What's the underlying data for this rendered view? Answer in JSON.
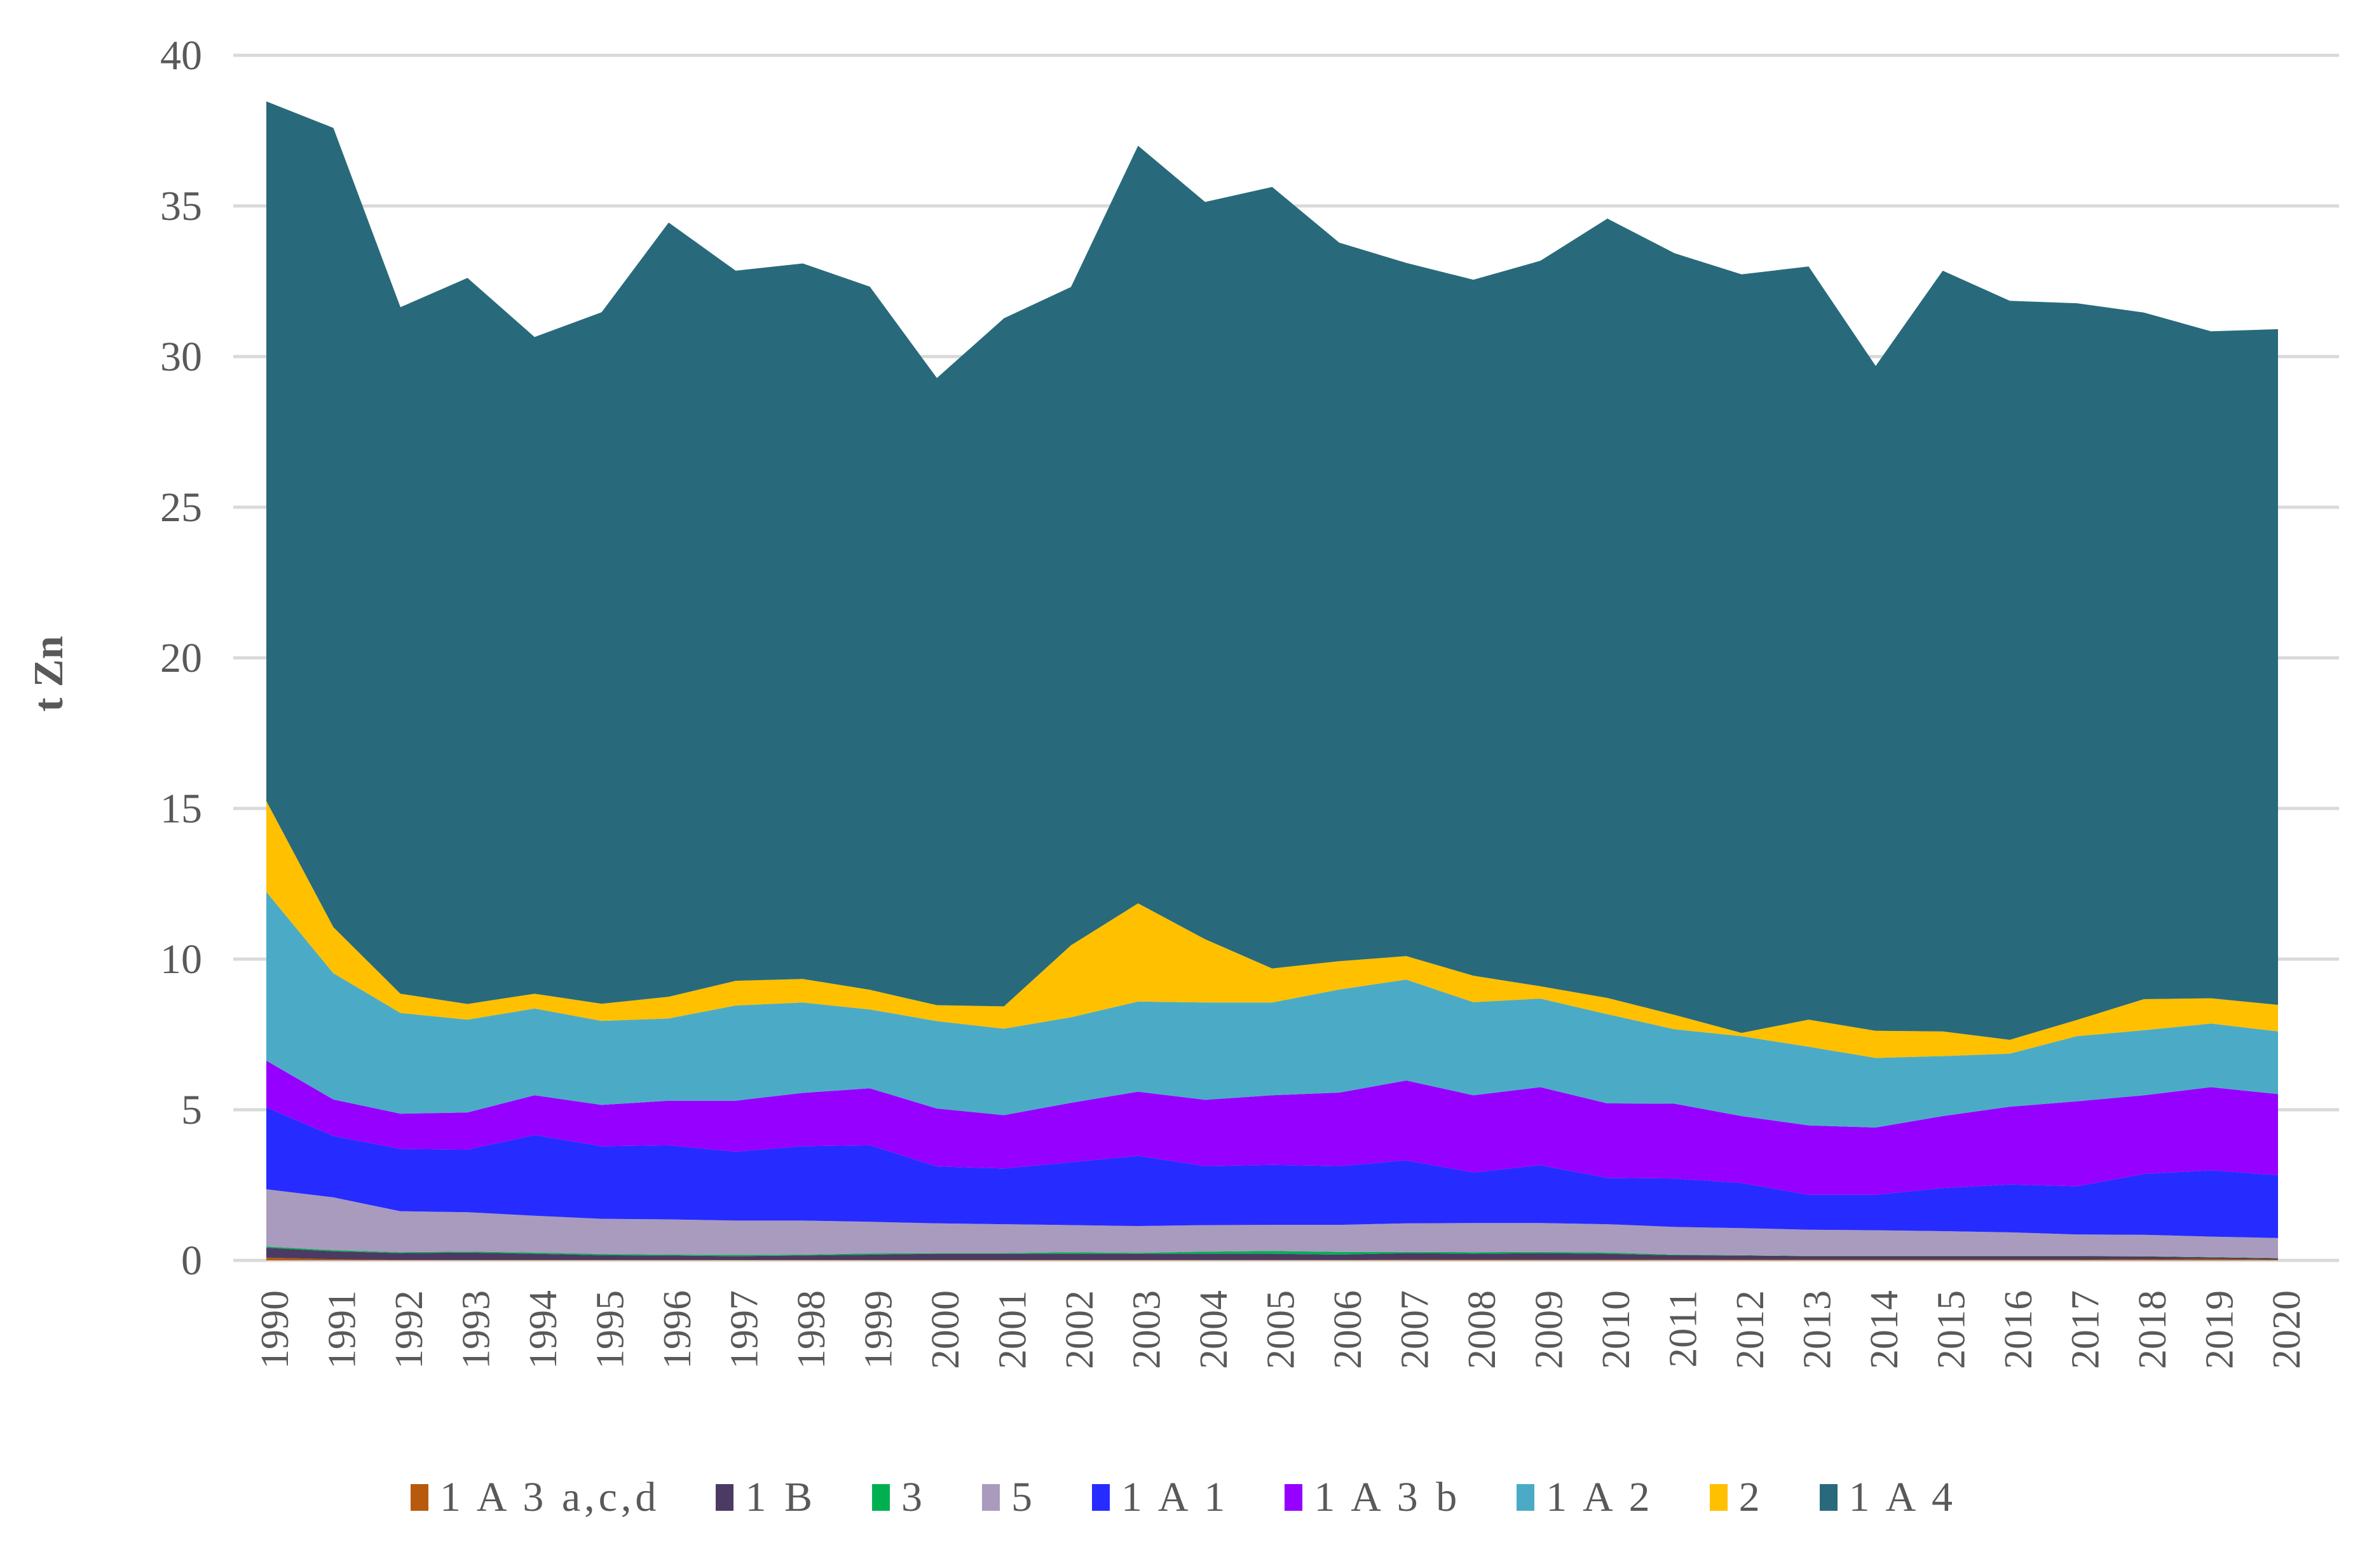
{
  "chart_data": {
    "type": "area",
    "stacked": true,
    "title": "",
    "xlabel": "",
    "ylabel": "t Zn",
    "ylim": [
      0,
      40
    ],
    "yticks": [
      0,
      5,
      10,
      15,
      20,
      25,
      30,
      35,
      40
    ],
    "grid": true,
    "legend_position": "bottom",
    "x": [
      "1990",
      "1991",
      "1992",
      "1993",
      "1994",
      "1995",
      "1996",
      "1997",
      "1998",
      "1999",
      "2000",
      "2001",
      "2002",
      "2003",
      "2004",
      "2005",
      "2006",
      "2007",
      "2008",
      "2009",
      "2010",
      "2011",
      "2012",
      "2013",
      "2014",
      "2015",
      "2016",
      "2017",
      "2018",
      "2019",
      "2020"
    ],
    "series": [
      {
        "name": "1 A 3 a,c,d",
        "color": "#b85a0d",
        "values": [
          0.09,
          0.04,
          0.02,
          0.02,
          0.02,
          0.02,
          0.02,
          0.02,
          0.02,
          0.02,
          0.02,
          0.02,
          0.02,
          0.02,
          0.02,
          0.02,
          0.02,
          0.03,
          0.03,
          0.03,
          0.03,
          0.03,
          0.03,
          0.03,
          0.03,
          0.03,
          0.03,
          0.03,
          0.04,
          0.05,
          0.03
        ]
      },
      {
        "name": "1 B",
        "color": "#4b3a63",
        "values": [
          0.33,
          0.26,
          0.22,
          0.24,
          0.2,
          0.15,
          0.14,
          0.12,
          0.14,
          0.17,
          0.2,
          0.2,
          0.2,
          0.2,
          0.2,
          0.2,
          0.17,
          0.21,
          0.19,
          0.21,
          0.19,
          0.14,
          0.13,
          0.11,
          0.11,
          0.11,
          0.11,
          0.11,
          0.09,
          0.05,
          0.04
        ]
      },
      {
        "name": "3",
        "color": "#00b050",
        "values": [
          0.04,
          0.04,
          0.03,
          0.03,
          0.04,
          0.04,
          0.03,
          0.04,
          0.03,
          0.04,
          0.02,
          0.02,
          0.05,
          0.03,
          0.07,
          0.09,
          0.09,
          0.04,
          0.05,
          0.04,
          0.04,
          0.02,
          0.01,
          0.01,
          0.01,
          0.01,
          0.01,
          0.01,
          0.01,
          0.01,
          0.01
        ]
      },
      {
        "name": "5",
        "color": "#a99bbd",
        "values": [
          1.9,
          1.75,
          1.36,
          1.31,
          1.22,
          1.17,
          1.17,
          1.14,
          1.13,
          1.05,
          0.99,
          0.96,
          0.9,
          0.89,
          0.88,
          0.87,
          0.9,
          0.95,
          0.97,
          0.96,
          0.94,
          0.92,
          0.9,
          0.87,
          0.85,
          0.82,
          0.78,
          0.71,
          0.71,
          0.68,
          0.66
        ]
      },
      {
        "name": "1 A 1",
        "color": "#262cff",
        "values": [
          2.72,
          2.04,
          2.07,
          2.08,
          2.68,
          2.41,
          2.46,
          2.29,
          2.47,
          2.54,
          1.89,
          1.85,
          2.09,
          2.33,
          1.96,
          1.99,
          1.95,
          2.09,
          1.68,
          1.92,
          1.54,
          1.61,
          1.5,
          1.16,
          1.18,
          1.43,
          1.59,
          1.6,
          2.02,
          2.2,
          2.09
        ]
      },
      {
        "name": "1 A 3 b",
        "color": "#9600ff",
        "values": [
          1.55,
          1.21,
          1.17,
          1.23,
          1.32,
          1.37,
          1.48,
          1.69,
          1.77,
          1.89,
          1.92,
          1.77,
          1.97,
          2.13,
          2.2,
          2.31,
          2.44,
          2.65,
          2.56,
          2.59,
          2.47,
          2.48,
          2.22,
          2.3,
          2.23,
          2.39,
          2.58,
          2.82,
          2.61,
          2.76,
          2.69
        ]
      },
      {
        "name": "1 A 2",
        "color": "#4babc6",
        "values": [
          5.6,
          4.19,
          3.34,
          3.08,
          2.88,
          2.79,
          2.73,
          3.16,
          3.0,
          2.62,
          2.9,
          2.87,
          2.84,
          2.99,
          3.23,
          3.08,
          3.42,
          3.35,
          3.09,
          2.94,
          2.96,
          2.47,
          2.65,
          2.61,
          2.31,
          1.99,
          1.76,
          2.16,
          2.16,
          2.11,
          2.08
        ]
      },
      {
        "name": "2",
        "color": "#ffc000",
        "values": [
          3.02,
          1.53,
          0.64,
          0.52,
          0.49,
          0.57,
          0.72,
          0.82,
          0.78,
          0.65,
          0.53,
          0.74,
          2.39,
          3.26,
          2.1,
          1.13,
          0.94,
          0.78,
          0.88,
          0.41,
          0.54,
          0.48,
          0.11,
          0.9,
          0.9,
          0.82,
          0.46,
          0.54,
          1.03,
          0.84,
          0.88
        ]
      },
      {
        "name": "1 A 4",
        "color": "#286a7b",
        "values": [
          23.22,
          26.53,
          22.79,
          24.1,
          21.8,
          22.95,
          25.7,
          23.57,
          23.75,
          23.34,
          20.82,
          22.84,
          21.85,
          25.15,
          24.47,
          25.94,
          23.85,
          23.01,
          23.1,
          24.08,
          25.87,
          25.28,
          25.18,
          25.0,
          22.07,
          25.25,
          24.53,
          23.79,
          22.79,
          22.14,
          22.43
        ]
      }
    ]
  }
}
